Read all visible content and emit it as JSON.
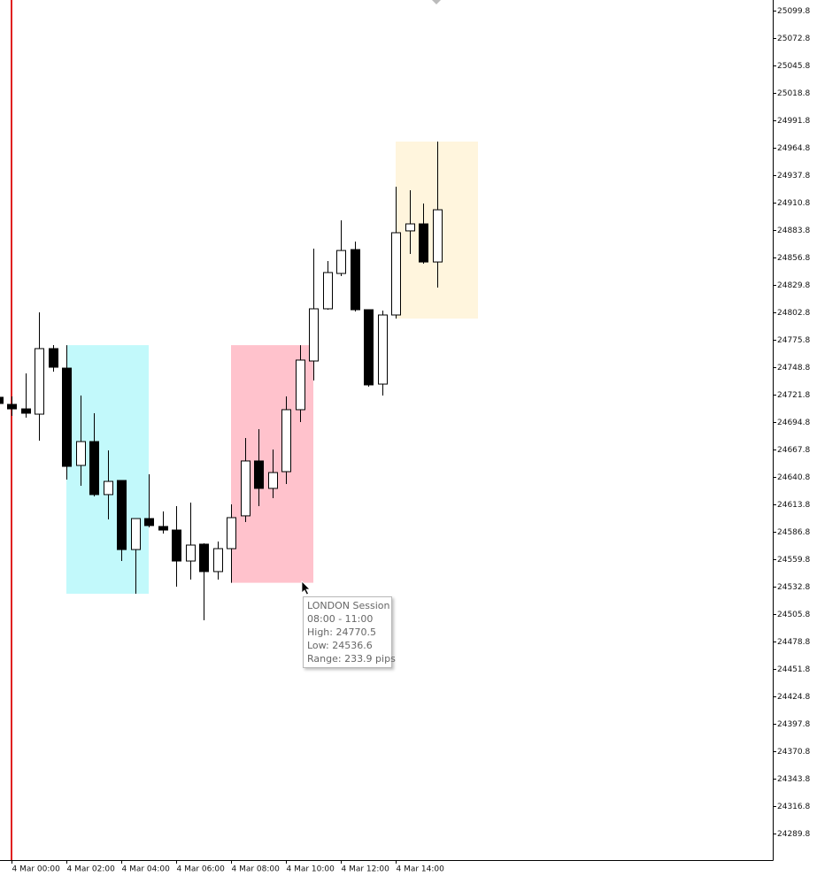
{
  "chart_data": {
    "type": "candlestick",
    "categories": [
      null,
      "4 Mar 00:00",
      null,
      null,
      null,
      "4 Mar 02:00",
      null,
      null,
      null,
      "4 Mar 04:00",
      null,
      null,
      null,
      "4 Mar 06:00",
      null,
      null,
      null,
      "4 Mar 08:00",
      null,
      null,
      null,
      "4 Mar 10:00",
      null,
      null,
      null,
      "4 Mar 12:00",
      null,
      null,
      null,
      "4 Mar 14:00",
      null,
      null,
      null
    ],
    "open": [
      24719.2,
      24712.2,
      24707.8,
      24702.6,
      24767.1,
      24747.9,
      24652.1,
      24675.6,
      24623.4,
      24637.3,
      24569.3,
      24599.8,
      24592.0,
      24588.5,
      24558.0,
      24574.6,
      24547.6,
      24570.2,
      24602.5,
      24656.5,
      24629.5,
      24646.0,
      24707.0,
      24754.9,
      24806.3,
      24841.1,
      24864.6,
      24805.4,
      24732.2,
      24800.2,
      24883.0,
      24889.9,
      24852.4
    ],
    "high": [
      24727.0,
      24720.0,
      24742.7,
      24802.8,
      24770.6,
      24770.5,
      24720.9,
      24703.5,
      24666.9,
      24637.3,
      24599.8,
      24643.4,
      24606.8,
      24612.0,
      24615.5,
      24575.5,
      24577.2,
      24613.8,
      24679.1,
      24687.8,
      24667.8,
      24720.0,
      24770.5,
      24865.5,
      24853.3,
      24893.4,
      24872.5,
      24805.4,
      24804.5,
      24926.5,
      24923.0,
      24909.9,
      24970.9
    ],
    "low": [
      24705.2,
      24700.9,
      24699.1,
      24676.5,
      24744.4,
      24638.2,
      24632.1,
      24621.6,
      24599.0,
      24558.0,
      24525.8,
      24591.1,
      24585.0,
      24532.8,
      24539.7,
      24499.7,
      24539.7,
      24536.6,
      24596.4,
      24612.0,
      24619.9,
      24633.8,
      24694.8,
      24735.7,
      24805.4,
      24838.5,
      24803.7,
      24729.6,
      24720.9,
      24796.7,
      24860.3,
      24850.7,
      24827.2
    ],
    "close": [
      24713.1,
      24707.8,
      24703.5,
      24767.1,
      24748.8,
      24651.2,
      24675.6,
      24623.4,
      24636.4,
      24569.3,
      24599.8,
      24592.9,
      24588.5,
      24558.0,
      24573.7,
      24547.6,
      24570.2,
      24600.7,
      24656.5,
      24629.5,
      24645.1,
      24707.0,
      24755.8,
      24806.3,
      24842.0,
      24863.7,
      24805.4,
      24731.4,
      24800.2,
      24881.2,
      24889.9,
      24852.4,
      24903.8
    ],
    "up_color": "#ffffff",
    "down_color": "#000000",
    "sessions": [
      {
        "start": 5,
        "end": 11,
        "high": 24770.5,
        "low": 24525.8,
        "color": "#c2f9fb"
      },
      {
        "start": 17,
        "end": 23,
        "high": 24770.5,
        "low": 24536.6,
        "color": "#ffc2cc"
      },
      {
        "start": 29,
        "end": 35,
        "high": 24970.9,
        "low": 24796.7,
        "color": "#fff5dd"
      }
    ],
    "ylim": [
      24263.6,
      25110.3
    ],
    "yticks": [
      25099.8,
      25072.8,
      25045.8,
      25018.8,
      24991.8,
      24964.8,
      24937.8,
      24910.8,
      24883.8,
      24856.8,
      24829.8,
      24802.8,
      24775.8,
      24748.8,
      24721.8,
      24694.8,
      24667.8,
      24640.8,
      24613.8,
      24586.8,
      24559.8,
      24532.8,
      24505.8,
      24478.8,
      24451.8,
      24424.8,
      24397.8,
      24370.8,
      24343.8,
      24316.8,
      24289.8
    ],
    "grid": false,
    "tooltip": [
      "LONDON Session",
      "08:00 - 11:00",
      "High: 24770.5",
      "Low: 24536.6",
      "Range: 233.9 pips"
    ]
  }
}
